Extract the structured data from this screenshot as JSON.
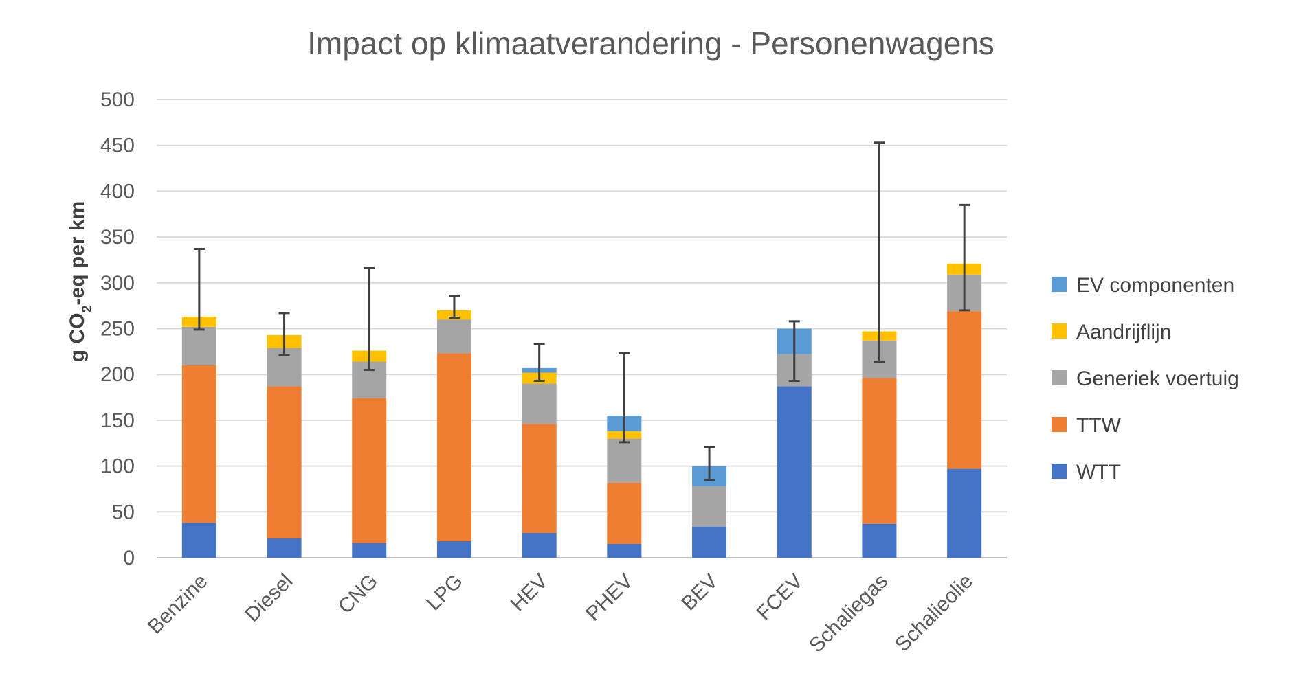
{
  "chart_data": {
    "type": "bar",
    "stacked": true,
    "title": "Impact op klimaatverandering - Personenwagens",
    "ylabel": "g CO2-eq per km",
    "ylabel_parts": {
      "before": "g CO",
      "sub": "2",
      "after": "-eq per km"
    },
    "xlabel": "",
    "ylim": [
      0,
      500
    ],
    "yticks": [
      0,
      50,
      100,
      150,
      200,
      250,
      300,
      350,
      400,
      450,
      500
    ],
    "grid": true,
    "legend_position": "right",
    "categories": [
      "Benzine",
      "Diesel",
      "CNG",
      "LPG",
      "HEV",
      "PHEV",
      "BEV",
      "FCEV",
      "Schaliegas",
      "Schalieolie"
    ],
    "series": [
      {
        "name": "WTT",
        "color": "#4472c4",
        "values": [
          38,
          21,
          16,
          18,
          27,
          15,
          34,
          187,
          37,
          97
        ]
      },
      {
        "name": "TTW",
        "color": "#ed7d31",
        "values": [
          172,
          166,
          158,
          205,
          119,
          67,
          0,
          0,
          159,
          172
        ]
      },
      {
        "name": "Generiek voertuig",
        "color": "#a5a5a5",
        "values": [
          42,
          42,
          40,
          37,
          44,
          48,
          44,
          35,
          41,
          40
        ]
      },
      {
        "name": "Aandrijflijn",
        "color": "#ffc000",
        "values": [
          11,
          14,
          12,
          10,
          12,
          8,
          0,
          0,
          10,
          12
        ]
      },
      {
        "name": "EV componenten",
        "color": "#5b9bd5",
        "values": [
          0,
          0,
          0,
          0,
          5,
          17,
          22,
          28,
          0,
          0
        ]
      }
    ],
    "error_bars": [
      {
        "low": 249,
        "high": 337
      },
      {
        "low": 221,
        "high": 267
      },
      {
        "low": 205,
        "high": 316
      },
      {
        "low": 262,
        "high": 286
      },
      {
        "low": 193,
        "high": 233
      },
      {
        "low": 126,
        "high": 223
      },
      {
        "low": 85,
        "high": 121
      },
      {
        "low": 193,
        "high": 258
      },
      {
        "low": 214,
        "high": 453
      },
      {
        "low": 270,
        "high": 385
      }
    ]
  }
}
